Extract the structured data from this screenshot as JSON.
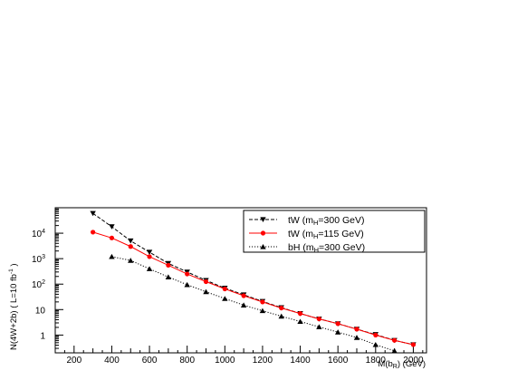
{
  "chart_data": {
    "type": "line",
    "xlabel": "M(b_R) (GeV)",
    "ylabel": "N(4W+2b) ( L=10 fb^-1 )",
    "xlim": [
      100,
      2070
    ],
    "ylim": [
      0.2,
      100000
    ],
    "yscale": "log",
    "x_ticks": [
      200,
      400,
      600,
      800,
      1000,
      1200,
      1400,
      1600,
      1800,
      2000
    ],
    "x_tick_labels": [
      "200",
      "400",
      "600",
      "800",
      "1000",
      "1200",
      "1400",
      "1600",
      "1800",
      "2000"
    ],
    "y_ticks": [
      1,
      10,
      100,
      1000,
      10000
    ],
    "y_tick_labels": [
      "1",
      "10",
      "10^2",
      "10^3",
      "10^4"
    ],
    "grid": false,
    "legend_position": "top-right",
    "series": [
      {
        "name": "tW (m_H=300 GeV)",
        "color": "#000000",
        "line_style": "dashed",
        "marker": "triangle-down",
        "x": [
          300,
          400,
          500,
          600,
          700,
          800,
          900,
          1000,
          1100,
          1200,
          1300,
          1400,
          1500,
          1600,
          1700,
          1800,
          1900,
          2000
        ],
        "y": [
          60000,
          18000,
          5000,
          1800,
          650,
          300,
          140,
          70,
          38,
          21,
          12,
          7,
          4.3,
          2.8,
          1.7,
          1.05,
          0.62,
          0.42
        ]
      },
      {
        "name": "tW (m_H=115 GeV)",
        "color": "#ff0000",
        "line_style": "solid",
        "marker": "circle",
        "x": [
          300,
          400,
          500,
          600,
          700,
          800,
          900,
          1000,
          1100,
          1200,
          1300,
          1400,
          1500,
          1600,
          1700,
          1800,
          1900,
          2000
        ],
        "y": [
          11000,
          6500,
          3000,
          1200,
          550,
          250,
          125,
          65,
          35,
          20,
          11.5,
          7,
          4.3,
          2.8,
          1.7,
          1.0,
          0.62,
          0.42
        ]
      },
      {
        "name": "bH (m_H=300 GeV)",
        "color": "#000000",
        "line_style": "dotted",
        "marker": "triangle-up",
        "x": [
          400,
          500,
          600,
          700,
          800,
          900,
          1000,
          1100,
          1200,
          1300,
          1400,
          1500,
          1600,
          1700,
          1800,
          1900
        ],
        "y": [
          1200,
          850,
          400,
          190,
          95,
          50,
          27,
          15,
          9,
          5.5,
          3.4,
          2.1,
          1.3,
          0.8,
          0.42,
          0.24
        ]
      }
    ],
    "legend_entries": [
      {
        "main": "tW (m",
        "sub": "H",
        "tail": "=300 GeV)"
      },
      {
        "main": "tW (m",
        "sub": "H",
        "tail": "=115 GeV)"
      },
      {
        "main": "bH (m",
        "sub": "H",
        "tail": "=300 GeV)"
      }
    ],
    "y_tick_display": [
      {
        "base": "1",
        "exp": ""
      },
      {
        "base": "10",
        "exp": ""
      },
      {
        "base": "10",
        "exp": "2"
      },
      {
        "base": "10",
        "exp": "3"
      },
      {
        "base": "10",
        "exp": "4"
      }
    ],
    "xlabel_parts": {
      "main": "M(b",
      "sub": "R",
      "tail": ") (GeV)"
    },
    "ylabel_parts": {
      "main": "N(4W+2b) ( L=10 fb",
      "sup": "-1",
      "tail": " )"
    }
  }
}
